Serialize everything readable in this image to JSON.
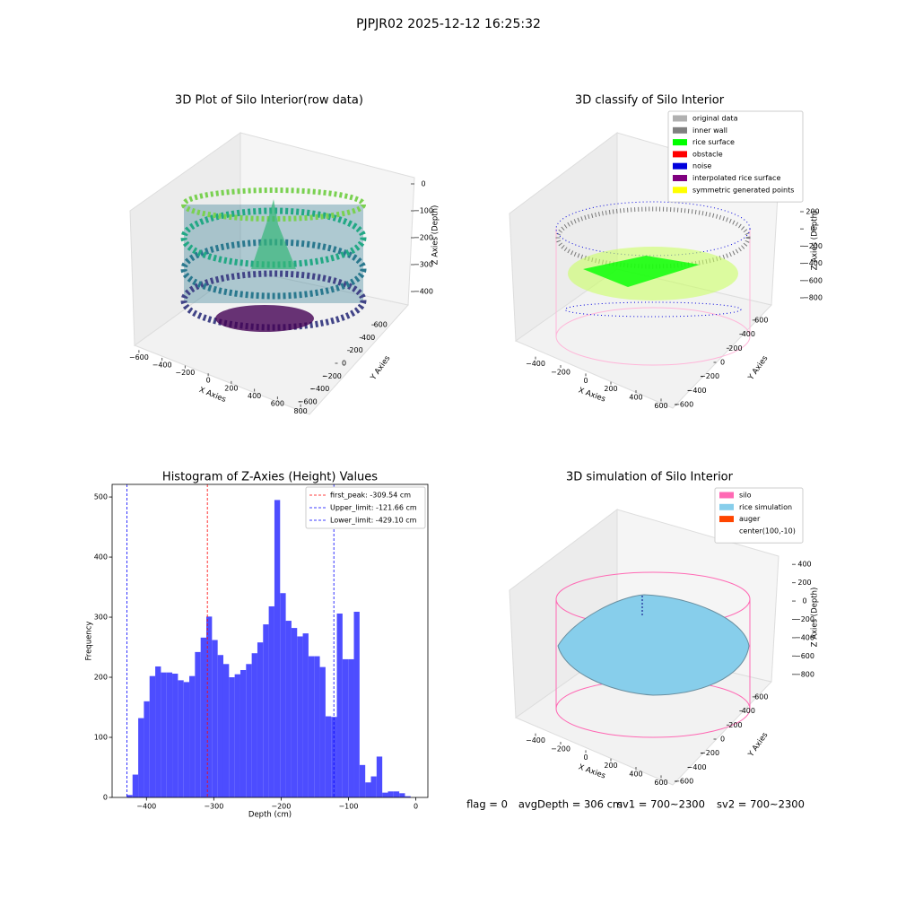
{
  "title": "PJPJR02 2025-12-12 16:25:32",
  "footer": [
    "flag = 0",
    "avgDepth = 306 cm",
    "sv1 = 700~2300",
    "sv2 = 700~2300"
  ],
  "chart_data": [
    {
      "type": "scatter3d",
      "title": "3D Plot of Silo Interior(row data)",
      "xlabel": "X Axies",
      "ylabel": "Y Axies",
      "zlabel": "Z Axies (Depth)",
      "xlim": [
        -700,
        900
      ],
      "ylim": [
        -700,
        700
      ],
      "zlim": [
        -450,
        30
      ],
      "xticks": [
        {
          "value": -600,
          "label": "−600"
        },
        {
          "value": -400,
          "label": "−400"
        },
        {
          "value": -200,
          "label": "−200"
        },
        0,
        200,
        400,
        600,
        800
      ],
      "yticks": [
        {
          "value": -600,
          "label": "−600"
        },
        {
          "value": -400,
          "label": "−400"
        },
        {
          "value": -200,
          "label": "−200"
        },
        0,
        200,
        400,
        600
      ],
      "zticks": [
        0,
        {
          "value": -100,
          "label": "−100"
        },
        {
          "value": -200,
          "label": "−200"
        },
        {
          "value": -300,
          "label": "−300"
        },
        {
          "value": -400,
          "label": "−400"
        }
      ]
    },
    {
      "type": "scatter3d",
      "title": "3D classify of Silo Interior",
      "xlabel": "X Axies",
      "ylabel": "Y Axies",
      "zlabel": "Z Axies (Depth)",
      "xlim": [
        -500,
        700
      ],
      "ylim": [
        -700,
        700
      ],
      "zlim": [
        -900,
        300
      ],
      "xticks": [
        {
          "value": -400,
          "label": "−400"
        },
        {
          "value": -200,
          "label": "−200"
        },
        0,
        200,
        400,
        600
      ],
      "yticks": [
        {
          "value": -600,
          "label": "−600"
        },
        {
          "value": -400,
          "label": "−400"
        },
        {
          "value": -200,
          "label": "−200"
        },
        0,
        200,
        400,
        600
      ],
      "zticks": [
        200,
        0,
        {
          "value": -200,
          "label": "−200"
        },
        {
          "value": -400,
          "label": "−400"
        },
        {
          "value": -600,
          "label": "−600"
        },
        {
          "value": -800,
          "label": "−800"
        }
      ],
      "legend": [
        {
          "name": "original data",
          "color": "#b0b0b0"
        },
        {
          "name": "inner wall",
          "color": "#808080"
        },
        {
          "name": "rice surface",
          "color": "#00ff00"
        },
        {
          "name": "obstacle",
          "color": "#ff0000"
        },
        {
          "name": "noise",
          "color": "#0000dd"
        },
        {
          "name": "interpolated rice surface",
          "color": "#800080"
        },
        {
          "name": "symmetric generated points",
          "color": "#ffff00"
        }
      ]
    },
    {
      "type": "histogram",
      "title": "Histogram of Z-Axies (Height) Values",
      "xlabel": "Depth (cm)",
      "ylabel": "Frequency",
      "color": "#4d4dff",
      "bins": [
        -429.1,
        -420.67,
        -412.24,
        -403.81,
        -395.38,
        -386.95,
        -378.52,
        -370.09,
        -361.66,
        -353.23,
        -344.8,
        -336.37,
        -327.94,
        -319.51,
        -311.08,
        -302.65,
        -294.22,
        -285.79,
        -277.36,
        -268.93,
        -260.5,
        -252.07,
        -243.64,
        -235.21,
        -226.78,
        -218.35,
        -209.92,
        -201.49,
        -193.06,
        -184.63,
        -176.2,
        -167.77,
        -159.34,
        -150.91,
        -142.48,
        -134.05,
        -125.62,
        -117.19,
        -108.76,
        -100.33,
        -91.9,
        -83.47,
        -75.04,
        -66.61,
        -58.18,
        -49.75,
        -41.32,
        -32.89,
        -24.46,
        -16.03,
        -7.6
      ],
      "values": [
        4,
        38,
        132,
        160,
        202,
        218,
        208,
        208,
        206,
        195,
        192,
        202,
        242,
        266,
        301,
        262,
        237,
        222,
        200,
        205,
        212,
        222,
        240,
        258,
        288,
        318,
        495,
        340,
        294,
        282,
        268,
        273,
        235,
        235,
        217,
        135,
        134,
        306,
        230,
        230,
        309,
        54,
        25,
        35,
        68,
        8,
        10,
        10,
        7,
        2
      ],
      "xlim": [
        -451,
        18
      ],
      "ylim": [
        0,
        521
      ],
      "xticks": [
        {
          "value": -400,
          "label": "−400"
        },
        {
          "value": -300,
          "label": "−300"
        },
        {
          "value": -200,
          "label": "−200"
        },
        {
          "value": -100,
          "label": "−100"
        },
        0
      ],
      "yticks": [
        0,
        100,
        200,
        300,
        400,
        500
      ],
      "reference_lines": [
        {
          "name": "first_peak: -309.54 cm",
          "value": -309.54,
          "color": "#ff0000"
        },
        {
          "name": "Upper_limit: -121.66 cm",
          "value": -121.66,
          "color": "#0000ff"
        },
        {
          "name": "Lower_limit: -429.10 cm",
          "value": -429.1,
          "color": "#0000ff"
        }
      ],
      "legend_position": "upper right"
    },
    {
      "type": "surface3d",
      "title": "3D simulation of Silo Interior",
      "xlabel": "X Axies",
      "ylabel": "Y Axies",
      "zlabel": "Z Axies (Depth)",
      "xlim": [
        -500,
        700
      ],
      "ylim": [
        -700,
        700
      ],
      "zlim": [
        -900,
        500
      ],
      "xticks": [
        {
          "value": -400,
          "label": "−400"
        },
        {
          "value": -200,
          "label": "−200"
        },
        0,
        200,
        400,
        600
      ],
      "yticks": [
        {
          "value": -600,
          "label": "−600"
        },
        {
          "value": -400,
          "label": "−400"
        },
        {
          "value": -200,
          "label": "−200"
        },
        0,
        200,
        400,
        600
      ],
      "zticks": [
        400,
        200,
        0,
        {
          "value": -200,
          "label": "−200"
        },
        {
          "value": -400,
          "label": "−400"
        },
        {
          "value": -600,
          "label": "−600"
        },
        {
          "value": -800,
          "label": "−800"
        }
      ],
      "legend": [
        {
          "name": "silo",
          "color": "#ff69b4"
        },
        {
          "name": "rice simulation",
          "color": "#87ceeb"
        },
        {
          "name": "auger",
          "color": "#ff4500"
        },
        {
          "name": "center(100,-10)"
        }
      ]
    }
  ]
}
